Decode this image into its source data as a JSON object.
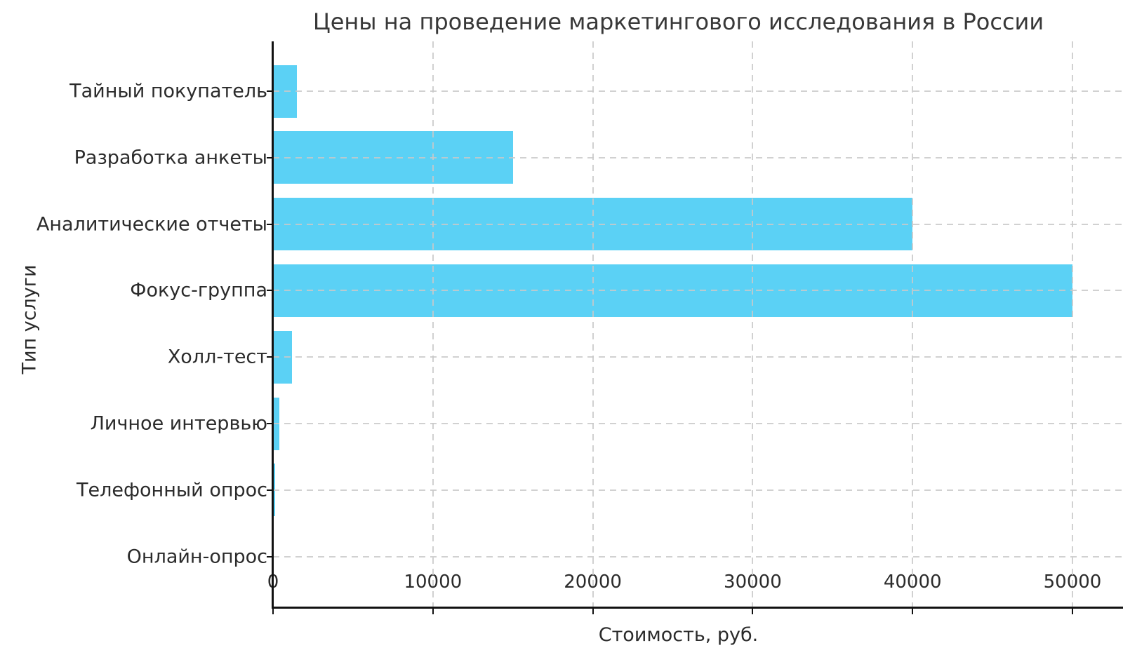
{
  "chart_data": {
    "type": "bar",
    "orientation": "horizontal",
    "title": "Цены на проведение маркетингового исследования в России",
    "xlabel": "Стоимость, руб.",
    "ylabel": "Тип услуги",
    "categories": [
      "Тайный покупатель",
      "Разработка анкеты",
      "Аналитические отчеты",
      "Фокус-группа",
      "Холл-тест",
      "Личное интервью",
      "Телефонный опрос",
      "Онлайн-опрос"
    ],
    "values": [
      1500,
      15000,
      40000,
      50000,
      1200,
      400,
      150,
      50
    ],
    "xticks": [
      0,
      10000,
      20000,
      30000,
      40000,
      50000
    ],
    "xtick_labels": [
      "0",
      "10000",
      "20000",
      "30000",
      "40000",
      "50000"
    ],
    "xlim": [
      0,
      53160
    ],
    "grid": true,
    "legend": false,
    "bar_color": "#5BD1F5",
    "grid_color": "#c9c9c9",
    "background_color": "#ffffff",
    "text_color": "#2b2b2b"
  }
}
